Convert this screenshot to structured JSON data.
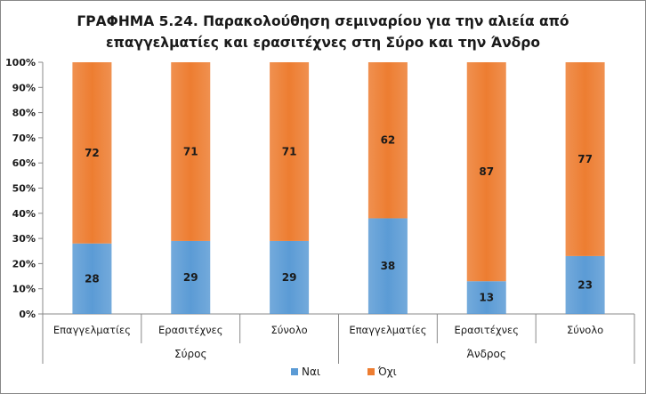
{
  "chart_data": {
    "type": "bar",
    "stacked": "percent",
    "title": [
      "ΓΡΑΦΗΜΑ 5.24. Παρακολούθηση σεμιναρίου για την αλιεία από",
      "επαγγελματίες και ερασιτέχνες στη Σύρο και την Άνδρο"
    ],
    "categories": [
      "Επαγγελματίες",
      "Ερασιτέχνες",
      "Σύνολο",
      "Επαγγελματίες",
      "Ερασιτέχνες",
      "Σύνολο"
    ],
    "groups": [
      {
        "label": "Σύρος",
        "categories": [
          0,
          1,
          2
        ]
      },
      {
        "label": "Άνδρος",
        "categories": [
          3,
          4,
          5
        ]
      }
    ],
    "series": [
      {
        "name": "Ναι",
        "color": "#5B9BD5",
        "values": [
          28,
          29,
          29,
          38,
          13,
          23
        ]
      },
      {
        "name": "Όχι",
        "color": "#ED7D31",
        "values": [
          72,
          71,
          71,
          62,
          87,
          77
        ]
      }
    ],
    "yticks": [
      "0%",
      "10%",
      "20%",
      "30%",
      "40%",
      "50%",
      "60%",
      "70%",
      "80%",
      "90%",
      "100%"
    ],
    "ylim": [
      0,
      100
    ],
    "grid": false,
    "legend": "bottom-center"
  }
}
